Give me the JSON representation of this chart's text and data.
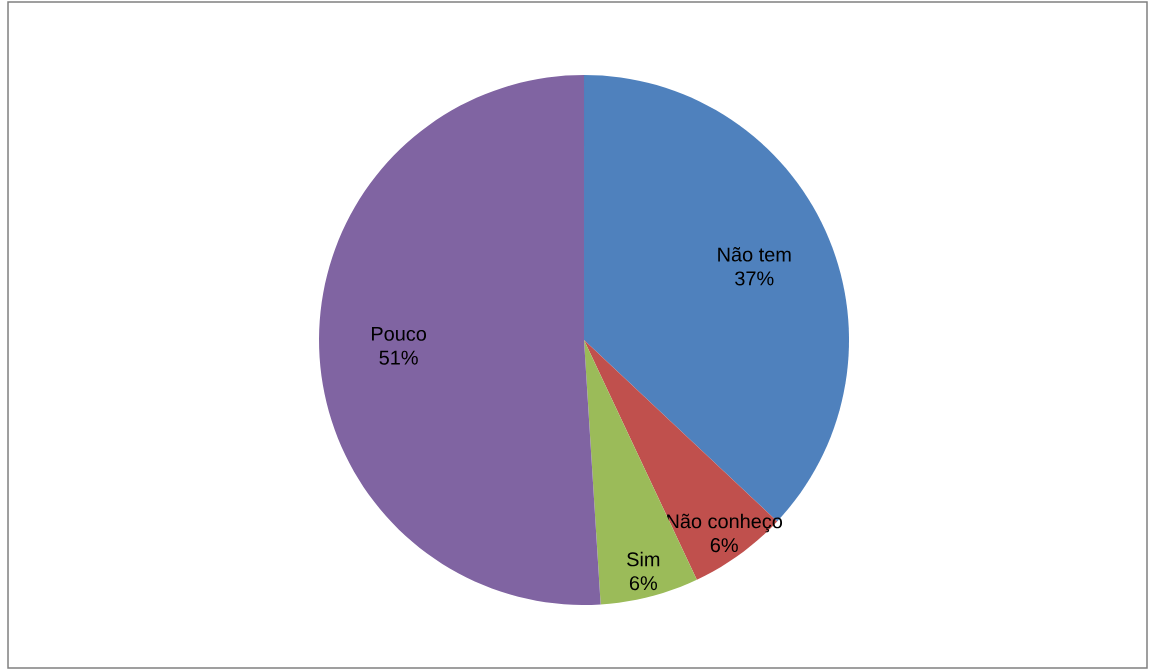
{
  "chart_data": {
    "type": "pie",
    "categories": [
      "Não tem",
      "Não conheço",
      "Sim",
      "Pouco"
    ],
    "values": [
      37,
      6,
      6,
      51
    ],
    "value_labels": [
      "37%",
      "6%",
      "6%",
      "51%"
    ],
    "colors": [
      "#4f81bd",
      "#c0504d",
      "#9bbb59",
      "#8064a2"
    ]
  }
}
